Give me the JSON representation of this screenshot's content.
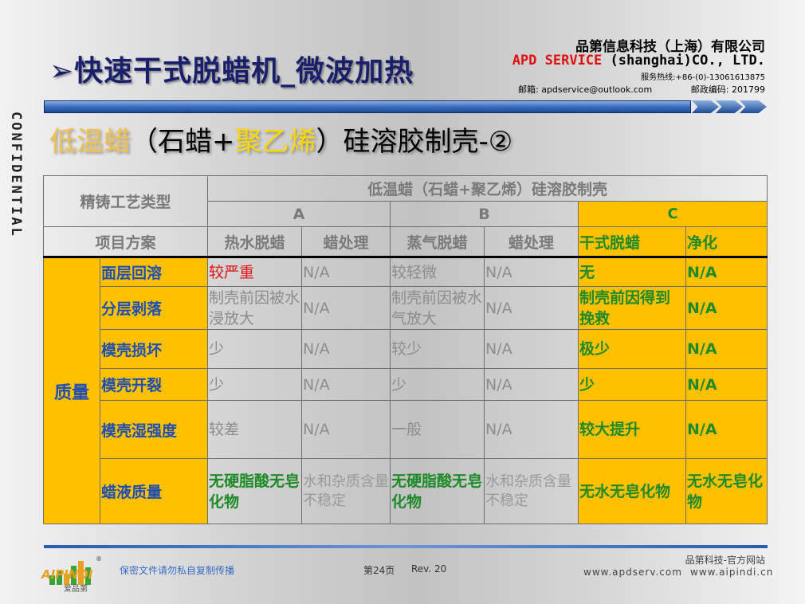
{
  "header": {
    "title": "➢快速干式脱蜡机_微波加热",
    "company_cn": "品第信息科技（上海）有限公司",
    "company_en_brand": "APD SERVICE",
    "company_en_rest": "(shanghai)CO., LTD.",
    "hotline": "服务热线:+86-(0)-13061613875",
    "email": "邮箱: apdservice@outlook.com",
    "postcode": "邮政编码: 201799"
  },
  "side_label": "CONFIDENTIAL",
  "subtitle": {
    "part1": "低温蜡",
    "part2": "（石蜡+",
    "part3": "聚乙烯",
    "part4": "）硅溶胶制壳-②"
  },
  "table": {
    "corner_label": "精铸工艺类型",
    "group_title": "低温蜡（石蜡+聚乙烯）硅溶胶制壳",
    "groups": [
      "A",
      "B",
      "C"
    ],
    "plan_label": "项目方案",
    "columns": [
      "热水脱蜡",
      "蜡处理",
      "蒸气脱蜡",
      "蜡处理",
      "干式脱蜡",
      "净化"
    ],
    "category": "质量",
    "rows": [
      {
        "label": "面层回溶",
        "cells": [
          "较严重",
          "N/A",
          "较轻微",
          "N/A",
          "无",
          "N/A"
        ]
      },
      {
        "label": "分层剥落",
        "cells": [
          "制壳前因被水浸放大",
          "N/A",
          "制壳前因被水气放大",
          "N/A",
          "制壳前因得到挽救",
          "N/A"
        ]
      },
      {
        "label": "模壳损坏",
        "cells": [
          "少",
          "N/A",
          "较少",
          "N/A",
          "极少",
          "N/A"
        ]
      },
      {
        "label": "模壳开裂",
        "cells": [
          "少",
          "N/A",
          "少",
          "N/A",
          "少",
          "N/A"
        ]
      },
      {
        "label": "模壳湿强度",
        "cells": [
          "较差",
          "N/A",
          "一般",
          "N/A",
          "较大提升",
          "N/A"
        ]
      },
      {
        "label": "蜡液质量",
        "cells": [
          "无硬脂酸无皂化物",
          "水和杂质含量不稳定",
          "无硬脂酸无皂化物",
          "水和杂质含量不稳定",
          "无水无皂化物",
          "无水无皂化物"
        ]
      }
    ]
  },
  "footer": {
    "logo_text": "AIPINDI",
    "logo_sub": "爱品第",
    "registered": "®",
    "notice": "保密文件请勿私自复制传播",
    "page": "第24页",
    "rev": "Rev. 20",
    "official": "品第科技-官方网站",
    "site1": "www.apdserv.com",
    "site2": "www.aipindi.cn"
  },
  "colors": {
    "title_navy": "#1a1f6b",
    "highlight_yellow": "#ffc000",
    "label_blue": "#1f4fb0",
    "value_green": "#1f8a28",
    "alert_red": "#e01010"
  }
}
